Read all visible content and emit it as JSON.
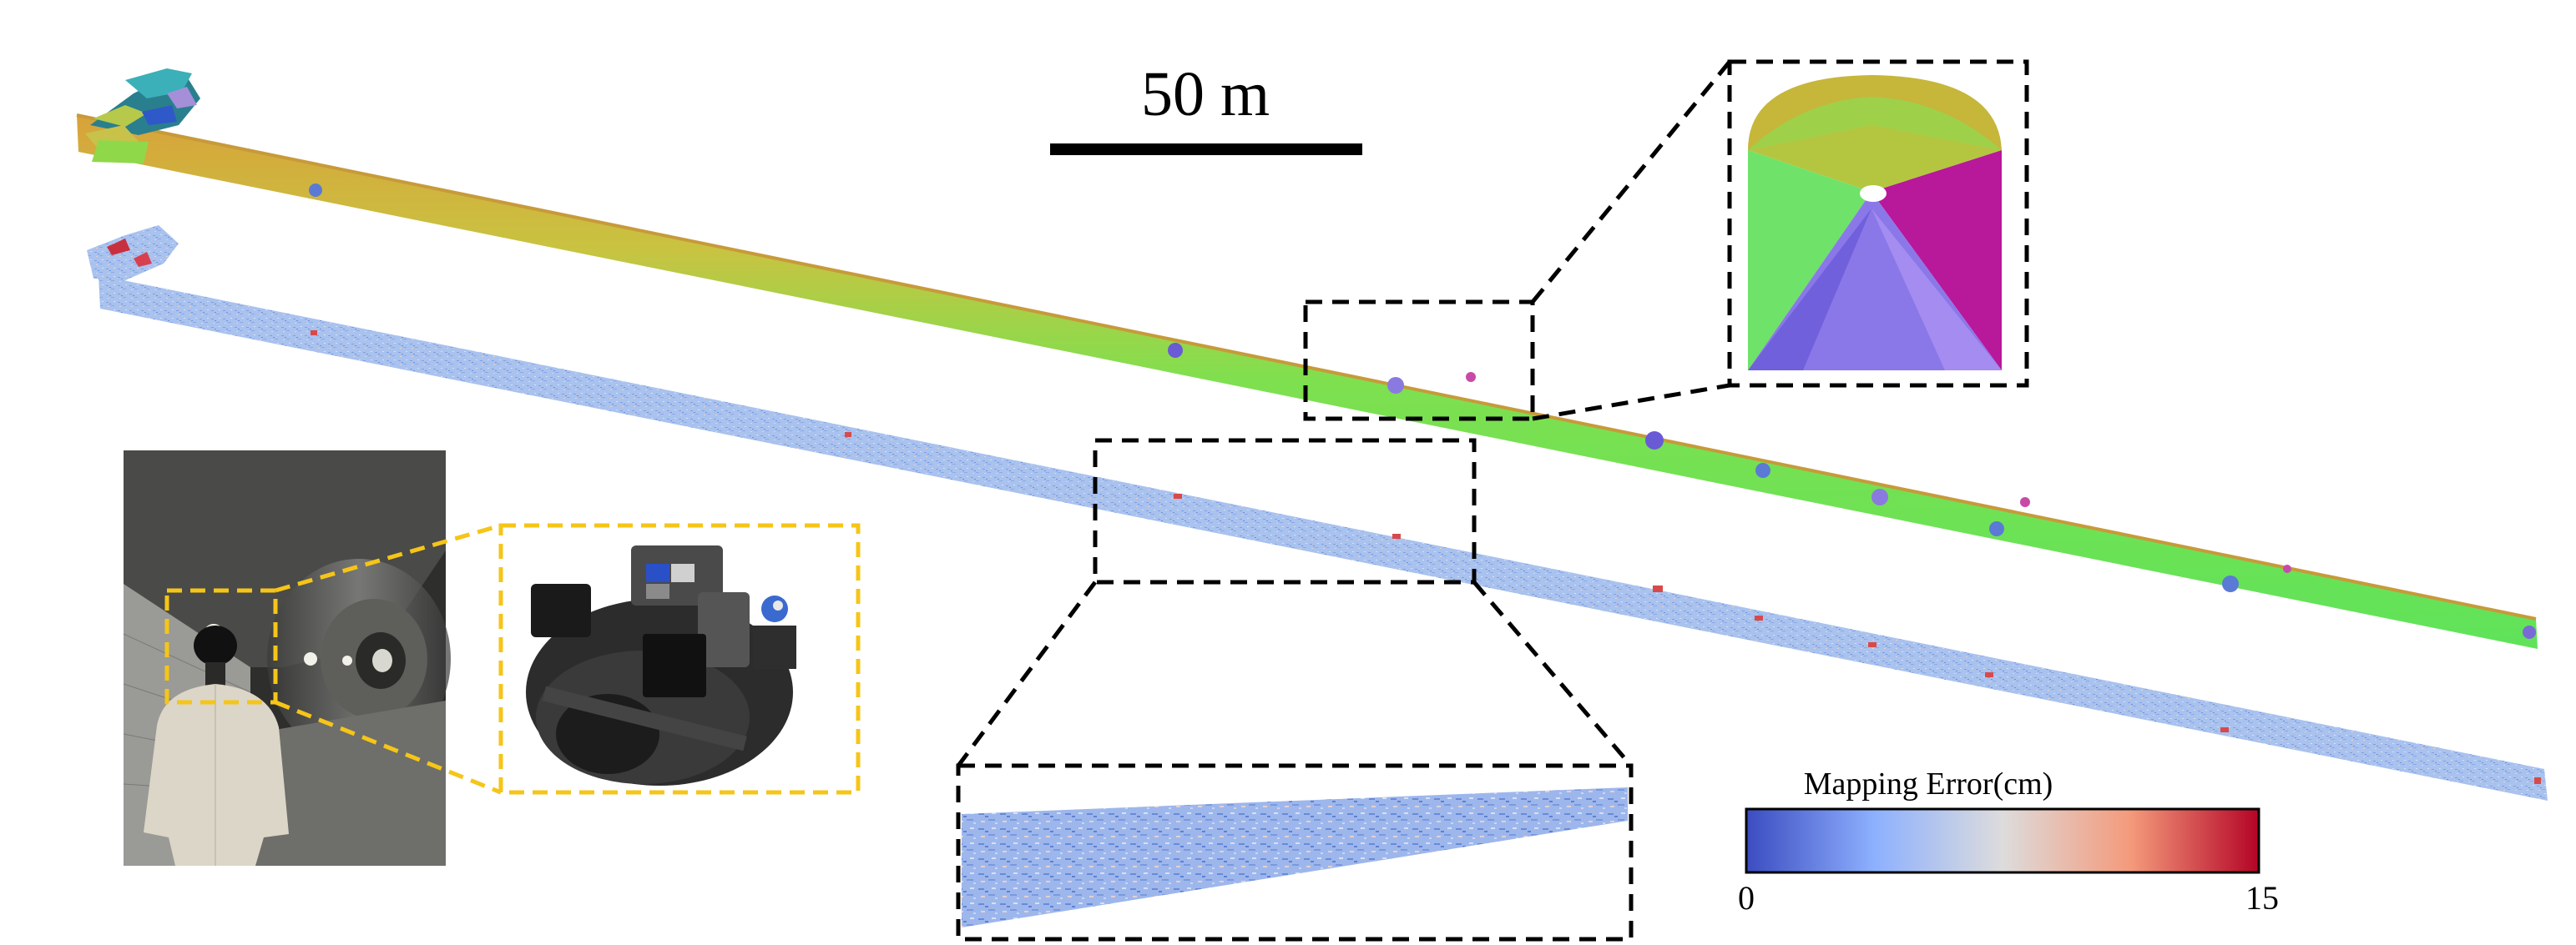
{
  "scale_bar": {
    "label": "50 m"
  },
  "colorbar": {
    "title": "Mapping Error(cm)",
    "min_label": "0",
    "max_label": "15",
    "colors": [
      "#3b4cc0",
      "#8db0fe",
      "#dddcdc",
      "#f49a7b",
      "#b40426"
    ]
  },
  "palette": {
    "tunnel_normal_green": "#5fe35a",
    "tunnel_normal_yellow": "#c9c341",
    "tunnel_normal_orange": "#d8a23a",
    "error_base_blue": "#a9c2ee",
    "zoom_box_border": "#000000",
    "photo_box_border": "#f5c518"
  },
  "icons": {
    "cross_section": "tunnel-cross-section-icon",
    "helmet": "helmet-sensor-icon",
    "person": "person-icon"
  }
}
